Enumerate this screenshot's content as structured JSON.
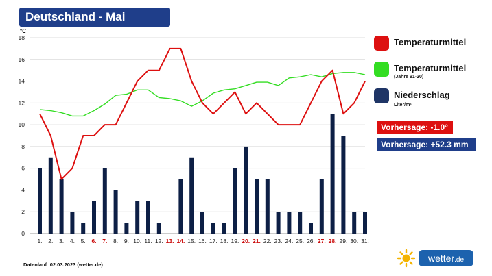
{
  "title": "Deutschland - Mai",
  "chart_data": {
    "type": "bar+line",
    "ylabel": "°C",
    "ylim": [
      0,
      18
    ],
    "yticks": [
      0,
      2,
      4,
      6,
      8,
      10,
      12,
      14,
      16,
      18
    ],
    "categories": [
      "1.",
      "2.",
      "3.",
      "4.",
      "5.",
      "6.",
      "7.",
      "8.",
      "9.",
      "10.",
      "11.",
      "12.",
      "13.",
      "14.",
      "15.",
      "16.",
      "17.",
      "18.",
      "19.",
      "20.",
      "21.",
      "22.",
      "23.",
      "24.",
      "25.",
      "26.",
      "27.",
      "28.",
      "29.",
      "30.",
      "31."
    ],
    "weekend_days": [
      6,
      7,
      13,
      14,
      20,
      21,
      27,
      28
    ],
    "series": [
      {
        "name": "Niederschlag",
        "kind": "bar",
        "color": "#0d1f45",
        "values": [
          6,
          7,
          5,
          2,
          1,
          3,
          6,
          4,
          1,
          3,
          3,
          1,
          0,
          5,
          7,
          2,
          1,
          1,
          6,
          8,
          5,
          5,
          2,
          2,
          2,
          1,
          5,
          11,
          9,
          2,
          2
        ]
      },
      {
        "name": "Temperaturmittel",
        "kind": "line",
        "color": "#dd1010",
        "values": [
          11,
          9,
          5,
          6,
          9,
          9,
          10,
          10,
          12,
          14,
          15,
          15,
          17,
          17,
          14,
          12,
          11,
          12,
          13,
          11,
          12,
          11,
          10,
          10,
          10,
          12,
          14,
          15,
          11,
          12,
          14
        ]
      },
      {
        "name": "Temperaturmittel (Jahre 91-20)",
        "kind": "line",
        "color": "#33dd22",
        "values": [
          11.4,
          11.3,
          11.1,
          10.8,
          10.8,
          11.3,
          11.9,
          12.7,
          12.8,
          13.2,
          13.2,
          12.5,
          12.4,
          12.2,
          11.7,
          12.2,
          12.9,
          13.2,
          13.3,
          13.6,
          13.9,
          13.9,
          13.6,
          14.3,
          14.4,
          14.6,
          14.4,
          14.7,
          14.8,
          14.8,
          14.6
        ]
      }
    ]
  },
  "legend": {
    "items": [
      {
        "label": "Temperaturmittel",
        "sub": "",
        "color": "#dd1010"
      },
      {
        "label": "Temperaturmittel",
        "sub": "(Jahre 91-20)",
        "color": "#33dd22"
      },
      {
        "label": "Niederschlag",
        "sub": "Liter/m²",
        "color": "#1f3566"
      }
    ]
  },
  "forecast": {
    "temperature": "Vorhersage: -1.0°",
    "temperature_color": "#dd1010",
    "precipitation": "Vorhersage: +52.3 mm",
    "precipitation_color": "#1f3e8a"
  },
  "footer": "Datenlauf: 02.03.2023 (wetter.de)",
  "logo": {
    "name": "wetter",
    "tld": ".de"
  }
}
